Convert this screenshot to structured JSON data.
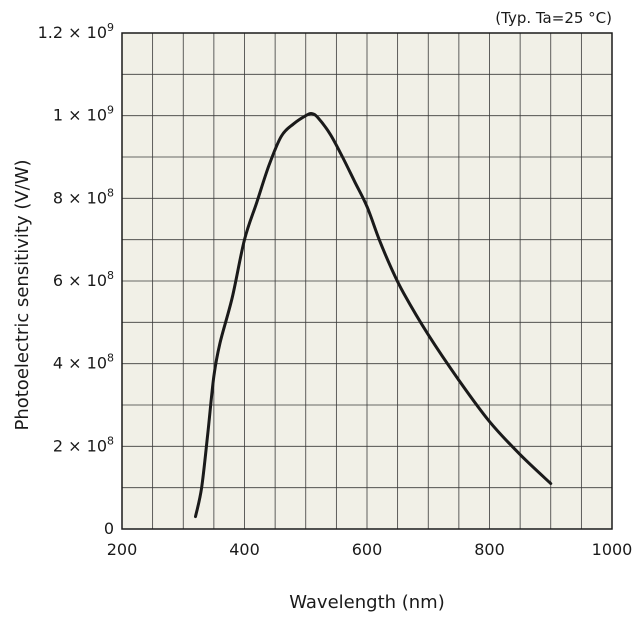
{
  "chart_data": {
    "type": "line",
    "title": "",
    "annotation": "(Typ. Ta=25 °C)",
    "xlabel": "Wavelength (nm)",
    "ylabel": "Photoelectric sensitivity (V/W)",
    "xlim": [
      200,
      1000
    ],
    "ylim": [
      0,
      1200000000
    ],
    "x_ticks": [
      {
        "value": 200,
        "label": "200"
      },
      {
        "value": 400,
        "label": "400"
      },
      {
        "value": 600,
        "label": "600"
      },
      {
        "value": 800,
        "label": "800"
      },
      {
        "value": 1000,
        "label": "1000"
      }
    ],
    "y_ticks": [
      {
        "value": 0,
        "mantissa": "0",
        "exp": ""
      },
      {
        "value": 200000000,
        "mantissa": "2 × 10",
        "exp": "8"
      },
      {
        "value": 400000000,
        "mantissa": "4 × 10",
        "exp": "8"
      },
      {
        "value": 600000000,
        "mantissa": "6 × 10",
        "exp": "8"
      },
      {
        "value": 800000000,
        "mantissa": "8 × 10",
        "exp": "8"
      },
      {
        "value": 1000000000,
        "mantissa": "1 × 10",
        "exp": "9"
      },
      {
        "value": 1200000000,
        "mantissa": "1.2 × 10",
        "exp": "9"
      }
    ],
    "grid": true,
    "grid_x_step": 50,
    "grid_y_step": 100000000,
    "plot_background": "#f1f0e7",
    "line_color": "#1a1a1a",
    "series": [
      {
        "x": [
          320,
          330,
          340,
          350,
          360,
          380,
          400,
          420,
          440,
          460,
          480,
          500,
          510,
          520,
          540,
          560,
          580,
          600,
          620,
          640,
          660,
          700,
          750,
          800,
          850,
          900
        ],
        "y": [
          30000000,
          100000000,
          230000000,
          370000000,
          450000000,
          560000000,
          700000000,
          790000000,
          880000000,
          950000000,
          980000000,
          1000000000,
          1005000000,
          995000000,
          955000000,
          900000000,
          840000000,
          780000000,
          700000000,
          630000000,
          570000000,
          470000000,
          360000000,
          260000000,
          180000000,
          110000000
        ]
      }
    ]
  }
}
